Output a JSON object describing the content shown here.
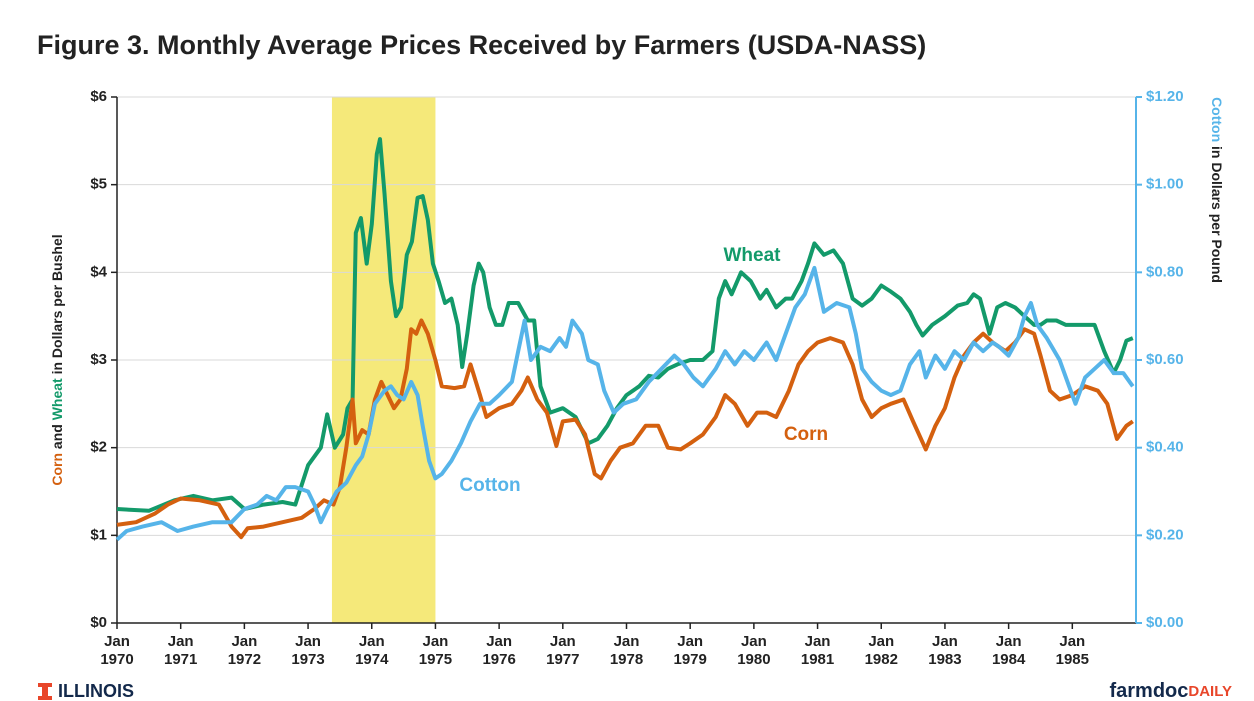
{
  "chart_data": {
    "type": "line",
    "title": "Figure 3. Monthly Average Prices Received by Farmers (USDA-NASS)",
    "y_label": [
      "Corn",
      " and ",
      "Wheat",
      " in Dollars per Bushel"
    ],
    "y2_label": [
      "Cotton",
      " in Dollars per Pound"
    ],
    "xlim": [
      1970,
      1986
    ],
    "xticks": [
      {
        "value": 1970,
        "label": "Jan 1970"
      },
      {
        "value": 1971,
        "label": "Jan 1971"
      },
      {
        "value": 1972,
        "label": "Jan 1972"
      },
      {
        "value": 1973,
        "label": "Jan 1973"
      },
      {
        "value": 1974,
        "label": "Jan 1974"
      },
      {
        "value": 1975,
        "label": "Jan 1975"
      },
      {
        "value": 1976,
        "label": "Jan 1976"
      },
      {
        "value": 1977,
        "label": "Jan 1977"
      },
      {
        "value": 1978,
        "label": "Jan 1978"
      },
      {
        "value": 1979,
        "label": "Jan 1979"
      },
      {
        "value": 1980,
        "label": "Jan 1980"
      },
      {
        "value": 1981,
        "label": "Jan 1981"
      },
      {
        "value": 1982,
        "label": "Jan 1982"
      },
      {
        "value": 1983,
        "label": "Jan 1983"
      },
      {
        "value": 1984,
        "label": "Jan 1984"
      },
      {
        "value": 1985,
        "label": "Jan 1985"
      }
    ],
    "ylim": [
      0,
      6
    ],
    "yticks": [
      {
        "value": 0,
        "label": "$0"
      },
      {
        "value": 1,
        "label": "$1"
      },
      {
        "value": 2,
        "label": "$2"
      },
      {
        "value": 3,
        "label": "$3"
      },
      {
        "value": 4,
        "label": "$4"
      },
      {
        "value": 5,
        "label": "$5"
      },
      {
        "value": 6,
        "label": "$6"
      }
    ],
    "y2lim": [
      0,
      1.2
    ],
    "y2ticks": [
      {
        "value": 0,
        "label": "$0.00"
      },
      {
        "value": 0.2,
        "label": "$0.20"
      },
      {
        "value": 0.4,
        "label": "$0.40"
      },
      {
        "value": 0.6,
        "label": "$0.60"
      },
      {
        "value": 0.8,
        "label": "$0.80"
      },
      {
        "value": 1.0,
        "label": "$1.00"
      },
      {
        "value": 1.2,
        "label": "$1.20"
      }
    ],
    "y2_color": "#56b4e9",
    "grid": true,
    "shaded_range": [
      1973.375,
      1975
    ],
    "shaded_color": "#f5e97a",
    "series": [
      {
        "name": "Wheat",
        "color": "#139a6a",
        "x": [
          1970.0,
          1970.5,
          1970.9,
          1971.2,
          1971.5,
          1971.8,
          1972.0,
          1972.3,
          1972.6,
          1972.8,
          1973.0,
          1973.2,
          1973.3,
          1973.42,
          1973.55,
          1973.62,
          1973.7,
          1973.75,
          1973.83,
          1973.92,
          1974.0,
          1974.08,
          1974.13,
          1974.2,
          1974.3,
          1974.38,
          1974.46,
          1974.55,
          1974.63,
          1974.72,
          1974.8,
          1974.88,
          1974.96,
          1975.05,
          1975.15,
          1975.25,
          1975.35,
          1975.42,
          1975.5,
          1975.6,
          1975.68,
          1975.75,
          1975.85,
          1975.95,
          1976.05,
          1976.15,
          1976.3,
          1976.45,
          1976.55,
          1976.65,
          1976.8,
          1977.0,
          1977.2,
          1977.4,
          1977.55,
          1977.7,
          1977.85,
          1978.0,
          1978.2,
          1978.35,
          1978.5,
          1978.65,
          1978.8,
          1979.0,
          1979.2,
          1979.35,
          1979.45,
          1979.55,
          1979.65,
          1979.8,
          1979.95,
          1980.1,
          1980.2,
          1980.35,
          1980.5,
          1980.6,
          1980.75,
          1980.85,
          1980.95,
          1981.1,
          1981.25,
          1981.4,
          1981.55,
          1981.7,
          1981.85,
          1982.0,
          1982.15,
          1982.3,
          1982.45,
          1982.55,
          1982.65,
          1982.8,
          1983.0,
          1983.2,
          1983.35,
          1983.45,
          1983.55,
          1983.7,
          1983.82,
          1983.95,
          1984.1,
          1984.25,
          1984.4,
          1984.5,
          1984.6,
          1984.75,
          1984.9,
          1985.05,
          1985.25,
          1985.35,
          1985.5,
          1985.65,
          1985.75,
          1985.85,
          1985.95
        ],
        "values": [
          1.3,
          1.28,
          1.4,
          1.45,
          1.4,
          1.43,
          1.3,
          1.35,
          1.38,
          1.35,
          1.8,
          2.0,
          2.38,
          2.0,
          2.15,
          2.45,
          2.55,
          4.45,
          4.62,
          4.1,
          4.55,
          5.35,
          5.52,
          4.9,
          3.9,
          3.5,
          3.6,
          4.2,
          4.35,
          4.85,
          4.87,
          4.6,
          4.1,
          3.9,
          3.65,
          3.7,
          3.4,
          2.92,
          3.3,
          3.85,
          4.1,
          4.0,
          3.6,
          3.4,
          3.4,
          3.65,
          3.65,
          3.45,
          3.45,
          2.7,
          2.4,
          2.45,
          2.35,
          2.05,
          2.1,
          2.25,
          2.45,
          2.6,
          2.7,
          2.82,
          2.8,
          2.9,
          2.95,
          3.0,
          3.0,
          3.1,
          3.7,
          3.9,
          3.75,
          4.0,
          3.9,
          3.7,
          3.8,
          3.6,
          3.7,
          3.7,
          3.9,
          4.1,
          4.33,
          4.2,
          4.25,
          4.1,
          3.7,
          3.62,
          3.7,
          3.85,
          3.78,
          3.7,
          3.55,
          3.4,
          3.28,
          3.4,
          3.5,
          3.62,
          3.65,
          3.75,
          3.7,
          3.3,
          3.6,
          3.65,
          3.6,
          3.5,
          3.4,
          3.4,
          3.45,
          3.45,
          3.4,
          3.4,
          3.4,
          3.4,
          3.1,
          2.85,
          3.0,
          3.22,
          3.25
        ]
      },
      {
        "name": "Corn",
        "color": "#d4600f",
        "x": [
          1970.0,
          1970.3,
          1970.6,
          1970.8,
          1971.0,
          1971.3,
          1971.6,
          1971.8,
          1971.95,
          1972.05,
          1972.3,
          1972.6,
          1972.9,
          1973.1,
          1973.25,
          1973.4,
          1973.5,
          1973.6,
          1973.7,
          1973.75,
          1973.85,
          1973.95,
          1974.05,
          1974.15,
          1974.25,
          1974.35,
          1974.45,
          1974.55,
          1974.62,
          1974.7,
          1974.78,
          1974.88,
          1975.0,
          1975.1,
          1975.3,
          1975.45,
          1975.55,
          1975.7,
          1975.8,
          1976.0,
          1976.2,
          1976.35,
          1976.45,
          1976.6,
          1976.75,
          1976.9,
          1977.0,
          1977.2,
          1977.35,
          1977.5,
          1977.6,
          1977.75,
          1977.9,
          1978.1,
          1978.3,
          1978.5,
          1978.65,
          1978.85,
          1979.0,
          1979.2,
          1979.4,
          1979.55,
          1979.7,
          1979.9,
          1980.05,
          1980.2,
          1980.35,
          1980.55,
          1980.7,
          1980.85,
          1981.0,
          1981.2,
          1981.4,
          1981.55,
          1981.7,
          1981.85,
          1982.0,
          1982.15,
          1982.35,
          1982.5,
          1982.7,
          1982.85,
          1983.0,
          1983.15,
          1983.3,
          1983.45,
          1983.6,
          1983.75,
          1983.95,
          1984.1,
          1984.25,
          1984.4,
          1984.5,
          1984.65,
          1984.8,
          1985.0,
          1985.2,
          1985.4,
          1985.55,
          1985.7,
          1985.85,
          1985.95
        ],
        "values": [
          1.12,
          1.15,
          1.25,
          1.35,
          1.42,
          1.4,
          1.35,
          1.1,
          0.98,
          1.08,
          1.1,
          1.15,
          1.2,
          1.3,
          1.4,
          1.35,
          1.55,
          2.0,
          2.55,
          2.05,
          2.2,
          2.15,
          2.55,
          2.75,
          2.6,
          2.45,
          2.55,
          2.9,
          3.35,
          3.3,
          3.45,
          3.3,
          3.0,
          2.7,
          2.68,
          2.7,
          2.95,
          2.6,
          2.35,
          2.45,
          2.5,
          2.65,
          2.8,
          2.55,
          2.4,
          2.02,
          2.3,
          2.32,
          2.15,
          1.7,
          1.65,
          1.85,
          2.0,
          2.05,
          2.25,
          2.25,
          2.0,
          1.98,
          2.05,
          2.15,
          2.35,
          2.6,
          2.5,
          2.25,
          2.4,
          2.4,
          2.35,
          2.65,
          2.95,
          3.1,
          3.2,
          3.25,
          3.2,
          2.95,
          2.55,
          2.35,
          2.45,
          2.5,
          2.55,
          2.3,
          1.98,
          2.25,
          2.45,
          2.8,
          3.05,
          3.2,
          3.3,
          3.2,
          3.1,
          3.2,
          3.35,
          3.3,
          3.05,
          2.65,
          2.55,
          2.6,
          2.7,
          2.65,
          2.5,
          2.1,
          2.25,
          2.3
        ]
      },
      {
        "name": "Cotton",
        "color": "#56b4e9",
        "axis": "y2",
        "x": [
          1970.0,
          1970.15,
          1970.4,
          1970.7,
          1970.95,
          1971.2,
          1971.5,
          1971.8,
          1972.0,
          1972.2,
          1972.35,
          1972.5,
          1972.65,
          1972.8,
          1973.0,
          1973.1,
          1973.2,
          1973.3,
          1973.45,
          1973.6,
          1973.75,
          1973.85,
          1973.95,
          1974.05,
          1974.2,
          1974.3,
          1974.4,
          1974.5,
          1974.62,
          1974.72,
          1974.8,
          1974.9,
          1975.0,
          1975.1,
          1975.25,
          1975.4,
          1975.55,
          1975.7,
          1975.85,
          1976.0,
          1976.2,
          1976.3,
          1976.4,
          1976.5,
          1976.65,
          1976.8,
          1976.95,
          1977.05,
          1977.15,
          1977.3,
          1977.4,
          1977.55,
          1977.65,
          1977.8,
          1977.95,
          1978.15,
          1978.35,
          1978.55,
          1978.75,
          1978.9,
          1979.05,
          1979.2,
          1979.4,
          1979.55,
          1979.7,
          1979.85,
          1980.0,
          1980.2,
          1980.35,
          1980.5,
          1980.65,
          1980.8,
          1980.95,
          1981.1,
          1981.3,
          1981.5,
          1981.6,
          1981.7,
          1981.85,
          1982.0,
          1982.15,
          1982.3,
          1982.45,
          1982.6,
          1982.7,
          1982.85,
          1983.0,
          1983.15,
          1983.3,
          1983.45,
          1983.6,
          1983.75,
          1983.85,
          1984.0,
          1984.15,
          1984.25,
          1984.35,
          1984.45,
          1984.6,
          1984.8,
          1984.95,
          1985.05,
          1985.2,
          1985.35,
          1985.5,
          1985.65,
          1985.8,
          1985.95
        ],
        "values": [
          0.19,
          0.21,
          0.22,
          0.23,
          0.21,
          0.22,
          0.23,
          0.23,
          0.26,
          0.27,
          0.29,
          0.28,
          0.31,
          0.31,
          0.3,
          0.27,
          0.23,
          0.26,
          0.3,
          0.32,
          0.36,
          0.38,
          0.43,
          0.5,
          0.53,
          0.54,
          0.52,
          0.51,
          0.55,
          0.52,
          0.45,
          0.37,
          0.33,
          0.34,
          0.37,
          0.41,
          0.46,
          0.5,
          0.5,
          0.52,
          0.55,
          0.62,
          0.69,
          0.6,
          0.63,
          0.62,
          0.65,
          0.63,
          0.69,
          0.66,
          0.6,
          0.59,
          0.53,
          0.48,
          0.5,
          0.51,
          0.55,
          0.58,
          0.61,
          0.59,
          0.56,
          0.54,
          0.58,
          0.62,
          0.59,
          0.62,
          0.6,
          0.64,
          0.6,
          0.66,
          0.72,
          0.75,
          0.81,
          0.71,
          0.73,
          0.72,
          0.66,
          0.58,
          0.55,
          0.53,
          0.52,
          0.53,
          0.59,
          0.62,
          0.56,
          0.61,
          0.58,
          0.62,
          0.6,
          0.64,
          0.62,
          0.64,
          0.63,
          0.61,
          0.65,
          0.7,
          0.73,
          0.68,
          0.65,
          0.6,
          0.54,
          0.5,
          0.56,
          0.58,
          0.6,
          0.57,
          0.57,
          0.54
        ]
      }
    ],
    "logo_left": "ILLINOIS",
    "logo_right": [
      "farmdoc",
      "DAILY"
    ]
  }
}
